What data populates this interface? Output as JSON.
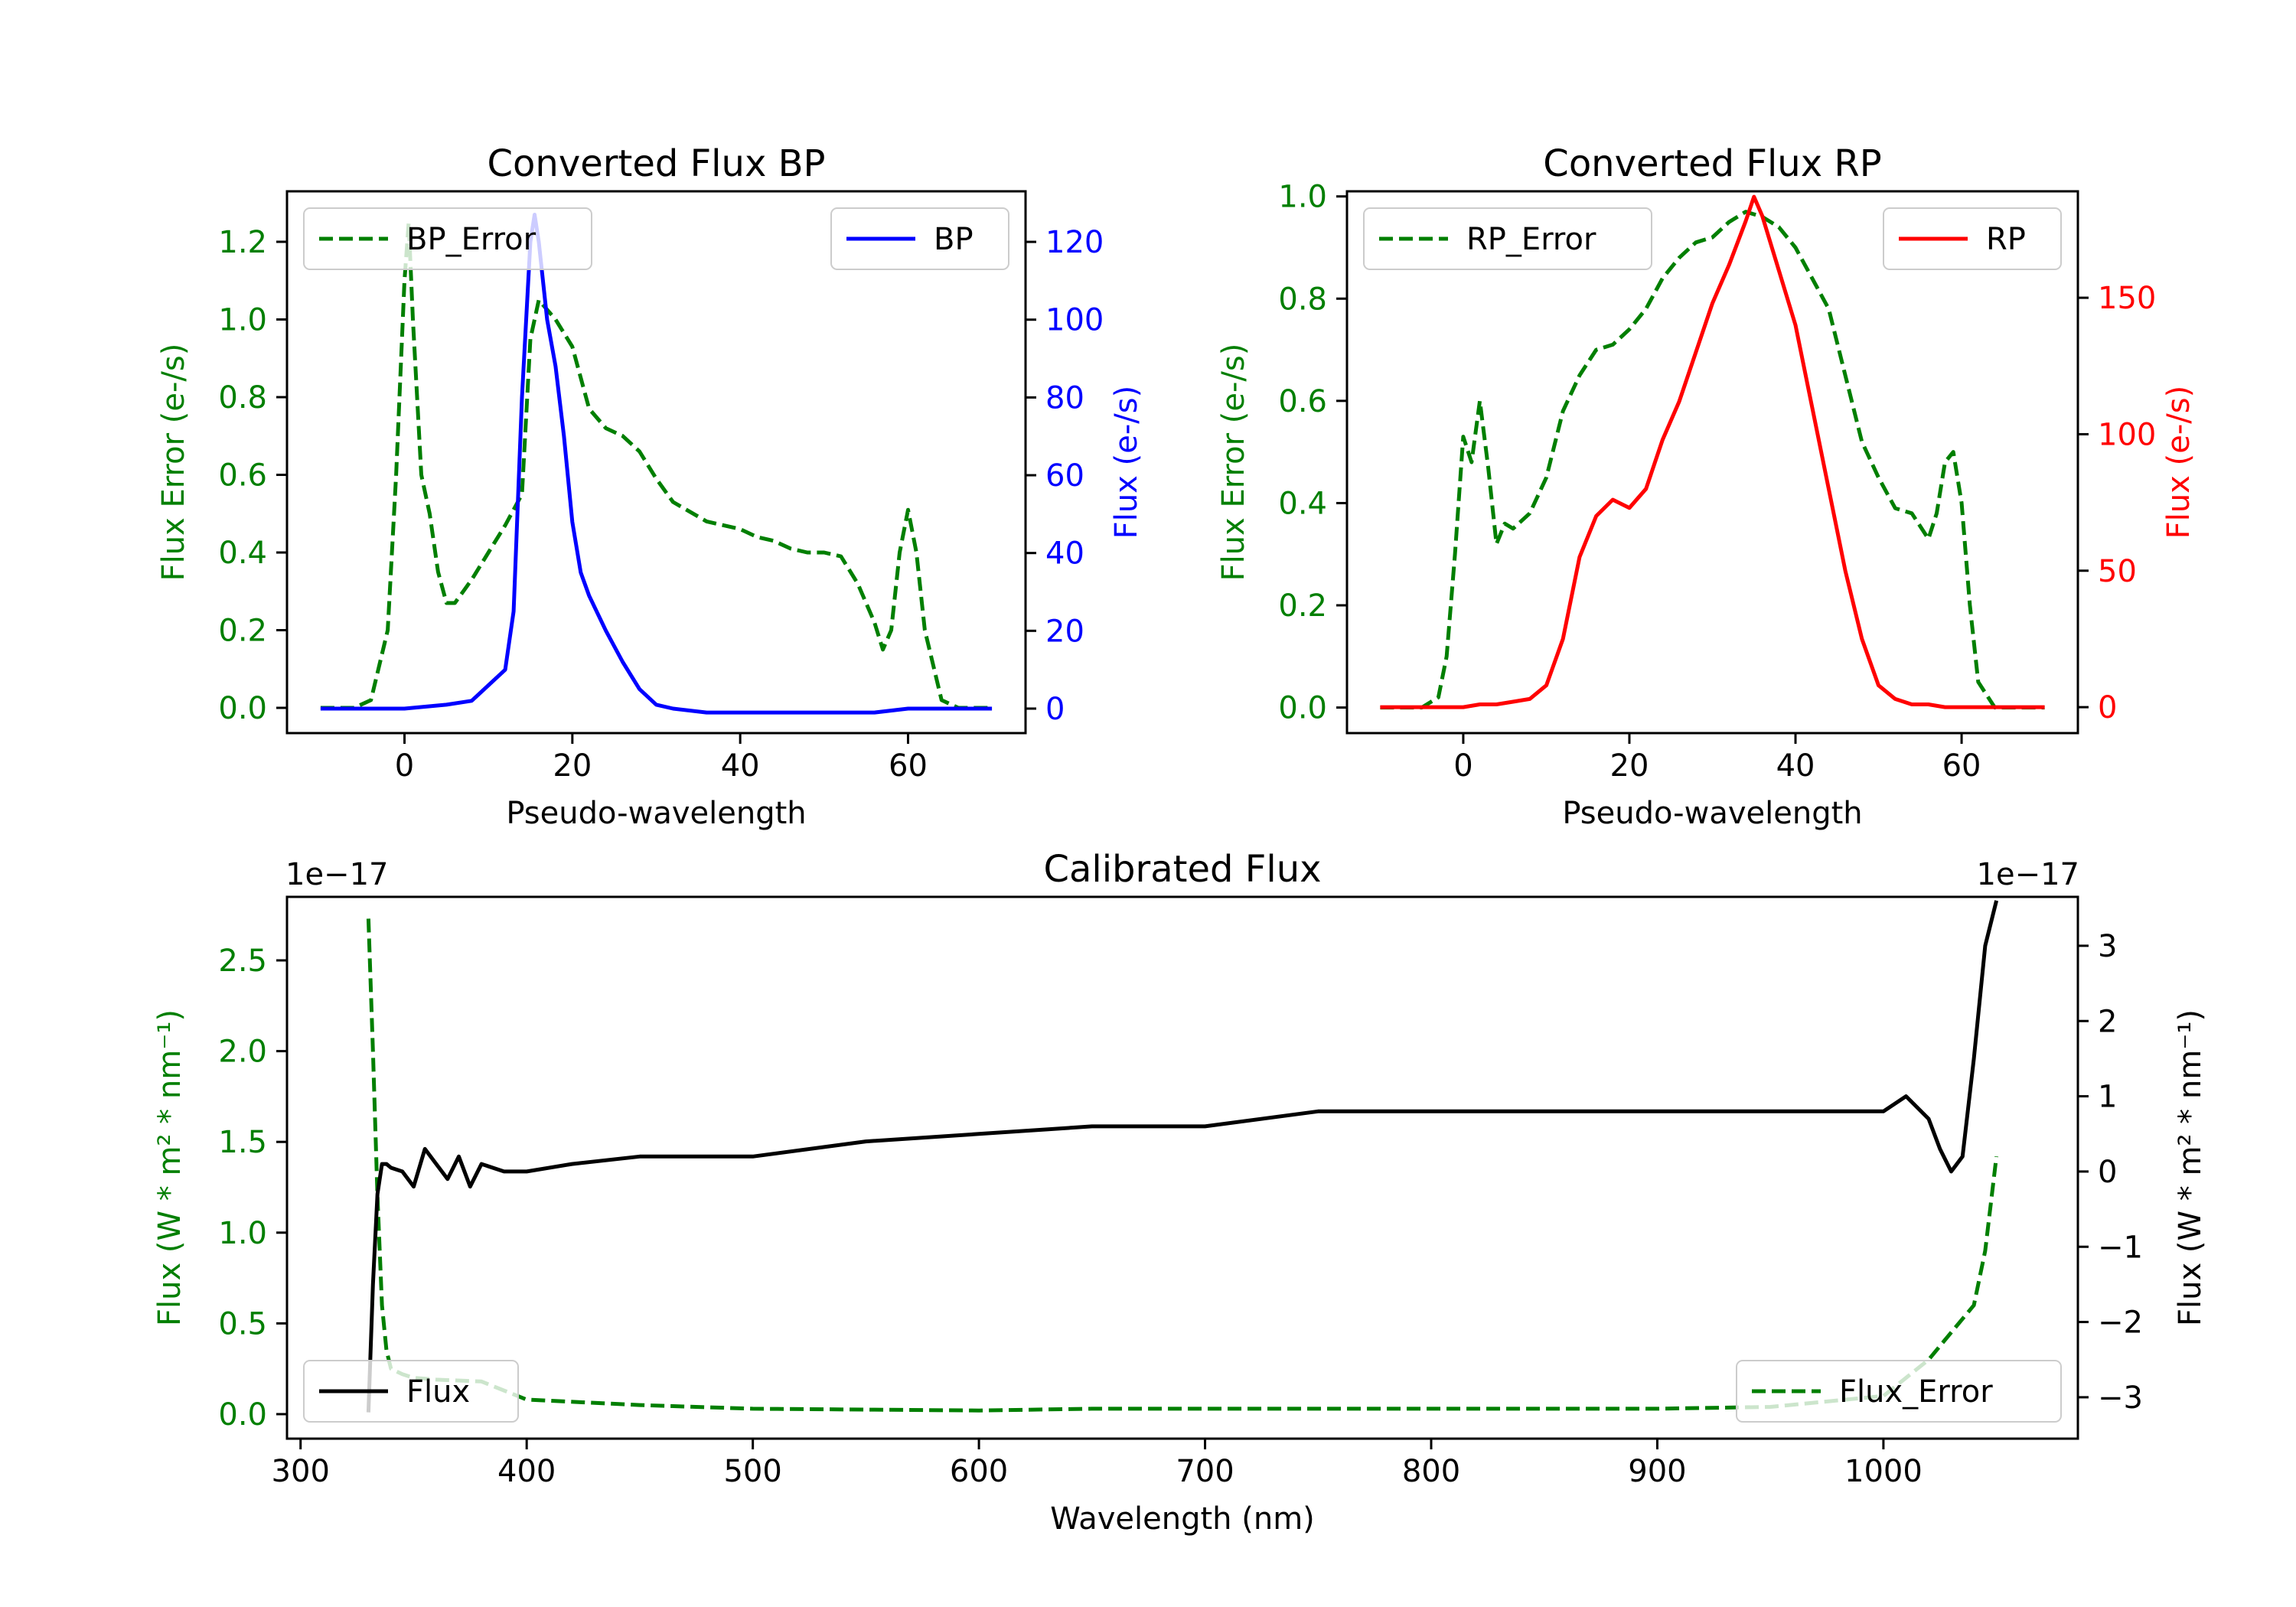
{
  "colors": {
    "green": "#007f00",
    "blue": "#0000ff",
    "red": "#ff0000",
    "black": "#000000"
  },
  "chart_data": [
    {
      "id": "bp",
      "type": "line",
      "title": "Converted Flux BP",
      "xlabel": "Pseudo-wavelength",
      "ylabel_left": "Flux Error (e-/s)",
      "ylabel_right": "Flux (e-/s)",
      "xlim": [
        -14,
        74
      ],
      "ylim_left": [
        -0.065,
        1.33
      ],
      "ylim_right": [
        -6.3,
        133
      ],
      "xticks": [
        0,
        20,
        40,
        60
      ],
      "yticks_left": [
        0.0,
        0.2,
        0.4,
        0.6,
        0.8,
        1.0,
        1.2
      ],
      "yticks_right": [
        0,
        20,
        40,
        60,
        80,
        100,
        120
      ],
      "legend_left": {
        "label": "BP_Error",
        "loc": "upper left"
      },
      "legend_right": {
        "label": "BP",
        "loc": "upper right"
      },
      "series": [
        {
          "name": "BP_Error",
          "axis": "left",
          "style": "dashed",
          "color": "#007f00",
          "x": [
            -10,
            -6,
            -4,
            -2,
            -1,
            0,
            0.5,
            1,
            2,
            3,
            4,
            5,
            6,
            7,
            8,
            10,
            12,
            14,
            15,
            16,
            18,
            20,
            22,
            24,
            26,
            28,
            30,
            32,
            36,
            40,
            42,
            44,
            46,
            48,
            50,
            52,
            54,
            56,
            57,
            58,
            59,
            60,
            61,
            62,
            64,
            66,
            70
          ],
          "y": [
            0,
            0,
            0.02,
            0.2,
            0.6,
            1.1,
            1.25,
            1.0,
            0.6,
            0.5,
            0.35,
            0.27,
            0.27,
            0.3,
            0.33,
            0.4,
            0.47,
            0.55,
            0.95,
            1.05,
            1.0,
            0.93,
            0.77,
            0.72,
            0.7,
            0.66,
            0.59,
            0.53,
            0.48,
            0.46,
            0.44,
            0.43,
            0.41,
            0.4,
            0.4,
            0.39,
            0.32,
            0.22,
            0.15,
            0.2,
            0.4,
            0.51,
            0.4,
            0.2,
            0.02,
            0,
            0
          ]
        },
        {
          "name": "BP",
          "axis": "right",
          "style": "solid",
          "color": "#0000ff",
          "x": [
            -10,
            -5,
            0,
            5,
            8,
            10,
            12,
            13,
            14,
            15,
            15.5,
            16,
            17,
            18,
            19,
            20,
            21,
            22,
            24,
            26,
            28,
            30,
            32,
            36,
            40,
            44,
            48,
            52,
            56,
            60,
            64,
            70
          ],
          "y": [
            0,
            0,
            0,
            1,
            2,
            6,
            10,
            25,
            80,
            120,
            127,
            120,
            100,
            88,
            70,
            48,
            35,
            29,
            20,
            12,
            5,
            1,
            0,
            -1,
            -1,
            -1,
            -1,
            -1,
            -1,
            0,
            0,
            0
          ]
        }
      ]
    },
    {
      "id": "rp",
      "type": "line",
      "title": "Converted Flux RP",
      "xlabel": "Pseudo-wavelength",
      "ylabel_left": "Flux Error (e-/s)",
      "ylabel_right": "Flux (e-/s)",
      "xlim": [
        -14,
        74
      ],
      "ylim_left": [
        -0.05,
        1.01
      ],
      "ylim_right": [
        -9.5,
        189
      ],
      "xticks": [
        0,
        20,
        40,
        60
      ],
      "yticks_left": [
        0.0,
        0.2,
        0.4,
        0.6,
        0.8,
        1.0
      ],
      "yticks_right": [
        0,
        50,
        100,
        150
      ],
      "legend_left": {
        "label": "RP_Error",
        "loc": "upper left"
      },
      "legend_right": {
        "label": "RP",
        "loc": "upper right"
      },
      "series": [
        {
          "name": "RP_Error",
          "axis": "left",
          "style": "dashed",
          "color": "#007f00",
          "x": [
            -10,
            -5,
            -3,
            -2,
            -1,
            0,
            1,
            2,
            3,
            4,
            5,
            6,
            8,
            10,
            12,
            14,
            16,
            18,
            20,
            22,
            24,
            26,
            28,
            30,
            32,
            34,
            36,
            38,
            40,
            42,
            44,
            46,
            48,
            50,
            52,
            54,
            56,
            57,
            58,
            59,
            60,
            61,
            62,
            64,
            66,
            70
          ],
          "y": [
            0,
            0,
            0.02,
            0.1,
            0.3,
            0.53,
            0.48,
            0.6,
            0.47,
            0.32,
            0.36,
            0.35,
            0.38,
            0.45,
            0.58,
            0.65,
            0.7,
            0.71,
            0.74,
            0.78,
            0.84,
            0.88,
            0.91,
            0.92,
            0.95,
            0.97,
            0.96,
            0.94,
            0.9,
            0.84,
            0.78,
            0.65,
            0.52,
            0.45,
            0.39,
            0.38,
            0.33,
            0.38,
            0.48,
            0.5,
            0.4,
            0.2,
            0.05,
            0,
            0,
            0
          ]
        },
        {
          "name": "RP",
          "axis": "right",
          "style": "solid",
          "color": "#ff0000",
          "x": [
            -10,
            -5,
            0,
            2,
            4,
            6,
            8,
            10,
            12,
            14,
            16,
            18,
            20,
            22,
            24,
            26,
            28,
            30,
            32,
            34,
            35,
            36,
            38,
            40,
            42,
            44,
            46,
            48,
            50,
            52,
            54,
            56,
            58,
            60,
            62,
            64,
            70
          ],
          "y": [
            0,
            0,
            0,
            1,
            1,
            2,
            3,
            8,
            25,
            55,
            70,
            76,
            73,
            80,
            98,
            112,
            130,
            148,
            162,
            178,
            187,
            180,
            160,
            140,
            110,
            80,
            50,
            25,
            8,
            3,
            1,
            1,
            0,
            0,
            0,
            0,
            0
          ]
        }
      ]
    },
    {
      "id": "calibrated",
      "type": "line",
      "title": "Calibrated Flux",
      "xlabel": "Wavelength (nm)",
      "ylabel_left_html": "Flux (W * m² * nm⁻¹)",
      "ylabel_right_html": "Flux (W * m² * nm⁻¹)",
      "offset_left": "1e−17",
      "offset_right": "1e−17",
      "xlim": [
        294,
        1086
      ],
      "ylim_left": [
        -0.135,
        2.85
      ],
      "ylim_right": [
        -3.55,
        3.65
      ],
      "xticks": [
        300,
        400,
        500,
        600,
        700,
        800,
        900,
        1000
      ],
      "yticks_left": [
        0.0,
        0.5,
        1.0,
        1.5,
        2.0,
        2.5
      ],
      "yticks_right": [
        -3,
        -2,
        -1,
        0,
        1,
        2,
        3
      ],
      "ytick_labels_right": [
        "−3",
        "−2",
        "−1",
        "0",
        "1",
        "2",
        "3"
      ],
      "legend_left": {
        "label": "Flux",
        "loc": "lower left"
      },
      "legend_right": {
        "label": "Flux_Error",
        "loc": "lower right"
      },
      "series": [
        {
          "name": "Flux_Error",
          "axis": "left",
          "style": "dashed",
          "color": "#007f00",
          "x": [
            330,
            332,
            334,
            336,
            338,
            340,
            345,
            350,
            360,
            380,
            400,
            450,
            500,
            600,
            650,
            700,
            800,
            900,
            950,
            1000,
            1010,
            1020,
            1030,
            1040,
            1045,
            1050
          ],
          "y": [
            2.73,
            2.0,
            1.2,
            0.6,
            0.35,
            0.25,
            0.22,
            0.2,
            0.19,
            0.18,
            0.08,
            0.05,
            0.03,
            0.02,
            0.03,
            0.03,
            0.03,
            0.03,
            0.04,
            0.1,
            0.2,
            0.3,
            0.45,
            0.6,
            0.9,
            1.42
          ]
        },
        {
          "name": "Flux",
          "axis": "right",
          "style": "solid",
          "color": "#000000",
          "x": [
            330,
            332,
            334,
            336,
            338,
            340,
            345,
            350,
            355,
            360,
            365,
            370,
            375,
            380,
            390,
            400,
            420,
            450,
            500,
            550,
            600,
            650,
            700,
            750,
            800,
            850,
            900,
            950,
            1000,
            1010,
            1020,
            1025,
            1030,
            1035,
            1040,
            1045,
            1050
          ],
          "y": [
            -3.2,
            -1.5,
            -0.3,
            0.1,
            0.1,
            0.05,
            0.0,
            -0.2,
            0.3,
            0.1,
            -0.1,
            0.2,
            -0.2,
            0.1,
            0.0,
            0.0,
            0.1,
            0.2,
            0.2,
            0.4,
            0.5,
            0.6,
            0.6,
            0.8,
            0.8,
            0.8,
            0.8,
            0.8,
            0.8,
            1.0,
            0.7,
            0.3,
            0.0,
            0.2,
            1.5,
            3.0,
            3.6
          ]
        }
      ]
    }
  ]
}
